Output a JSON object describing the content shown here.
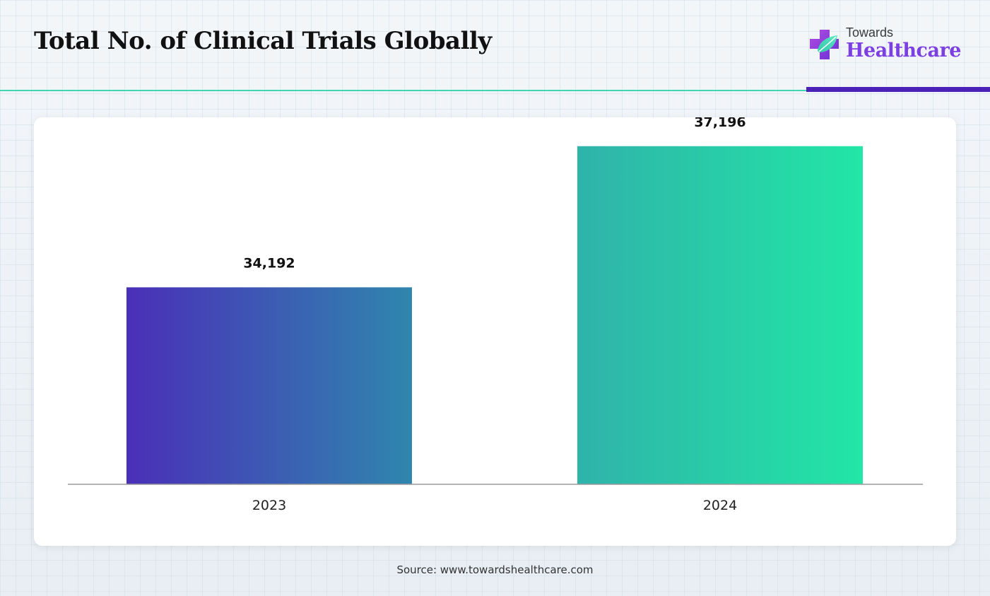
{
  "title": "Total No. of Clinical Trials Globally",
  "logo": {
    "line1": "Towards",
    "line2": "Healthcare",
    "icon": "medical-cross-leaf-icon"
  },
  "source": "Source: www.towardshealthcare.com",
  "colors": {
    "accent_teal": "#3fd6b3",
    "accent_purple": "#4a22b8",
    "bar_2023": [
      "#4a2fb8",
      "#2f86ae"
    ],
    "bar_2024": [
      "#2fb3aa",
      "#22e6a6"
    ]
  },
  "chart_data": {
    "type": "bar",
    "categories": [
      "2023",
      "2024"
    ],
    "values": [
      34192,
      37196
    ],
    "labels": [
      "34,192",
      "37,196"
    ],
    "title": "Total No. of Clinical Trials Globally",
    "xlabel": "",
    "ylabel": "",
    "ylim": [
      30000,
      38000
    ],
    "grid": false,
    "legend": "none"
  }
}
